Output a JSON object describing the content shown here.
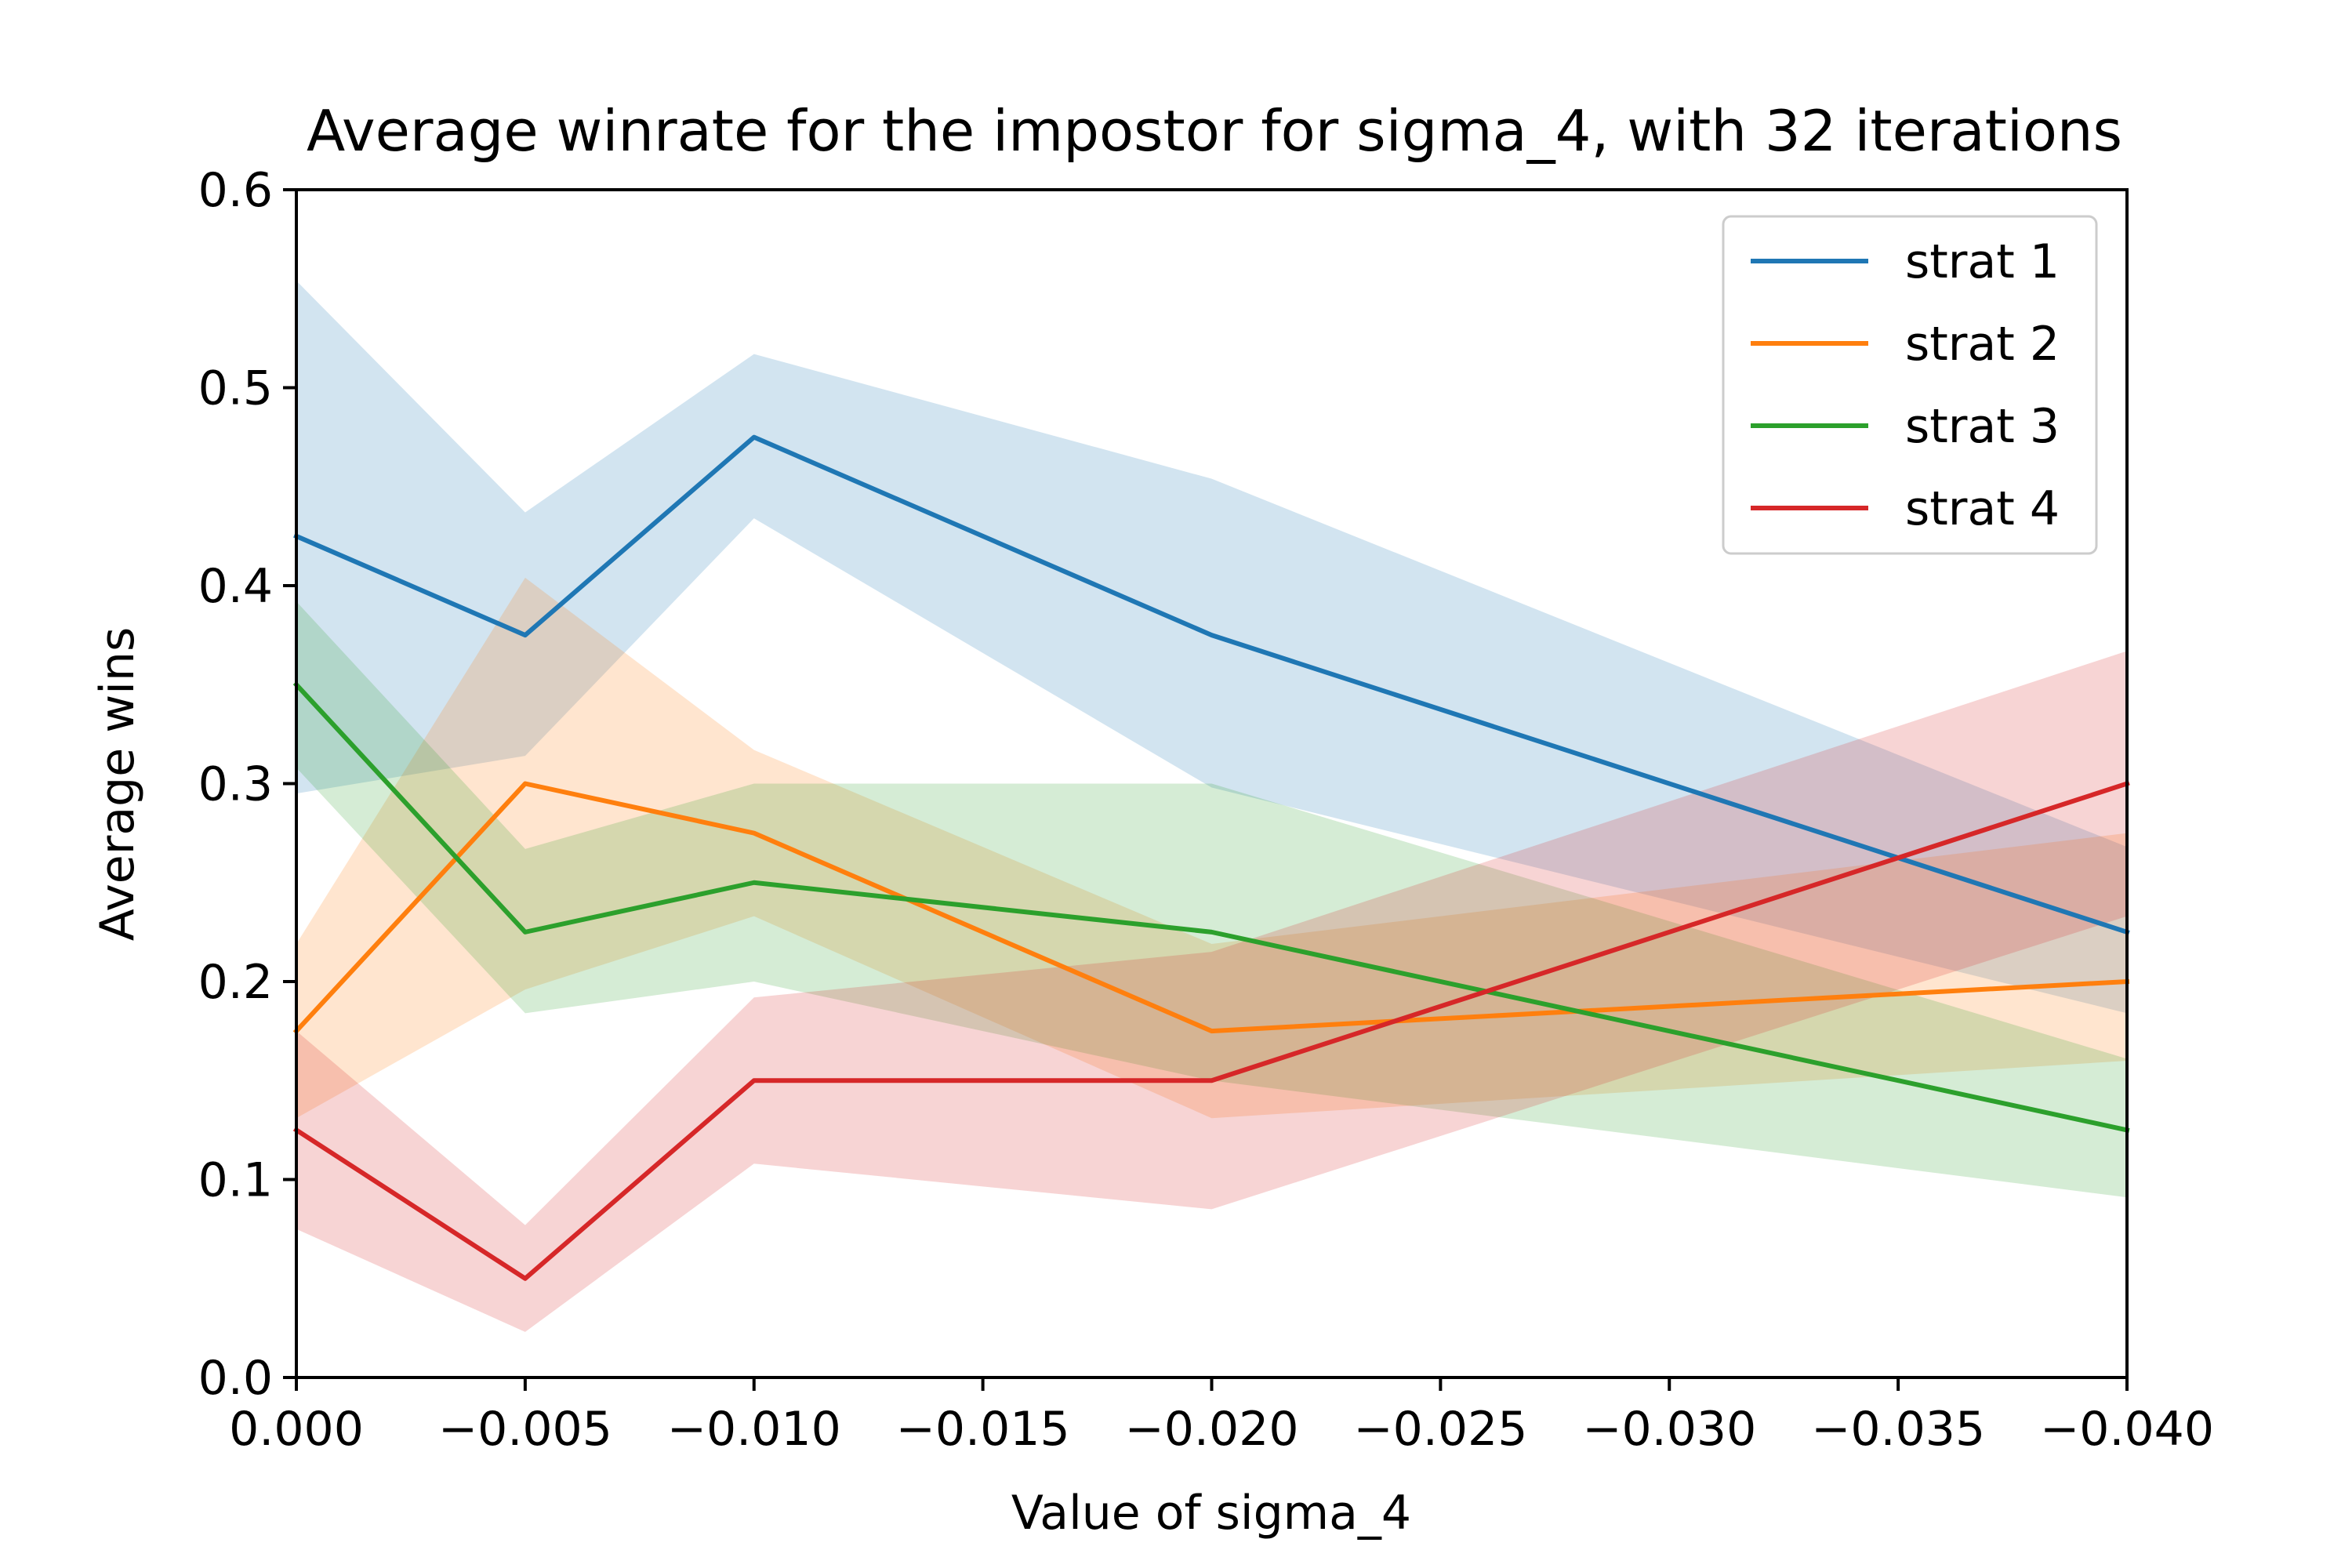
{
  "chart_data": {
    "type": "line",
    "title": "Average winrate for the impostor for sigma_4, with 32 iterations",
    "xlabel": "Value of sigma_4",
    "ylabel": "Average wins",
    "x": [
      0.0,
      -0.005,
      -0.01,
      -0.02,
      -0.04
    ],
    "xlim": [
      0.0,
      -0.04
    ],
    "ylim": [
      0.0,
      0.6
    ],
    "xticks": [
      0.0,
      -0.005,
      -0.01,
      -0.015,
      -0.02,
      -0.025,
      -0.03,
      -0.035,
      -0.04
    ],
    "xtick_labels": [
      "0.000",
      "−0.005",
      "−0.010",
      "−0.015",
      "−0.020",
      "−0.025",
      "−0.030",
      "−0.035",
      "−0.040"
    ],
    "yticks": [
      0.0,
      0.1,
      0.2,
      0.3,
      0.4,
      0.5,
      0.6
    ],
    "ytick_labels": [
      "0.0",
      "0.1",
      "0.2",
      "0.3",
      "0.4",
      "0.5",
      "0.6"
    ],
    "grid": false,
    "legend_position": "top-right",
    "series": [
      {
        "name": "strat 1",
        "color": "#1f77b4",
        "values": [
          0.425,
          0.375,
          0.475,
          0.375,
          0.225
        ],
        "lower": [
          0.295,
          0.314,
          0.434,
          0.298,
          0.184
        ],
        "upper": [
          0.554,
          0.437,
          0.517,
          0.454,
          0.268
        ]
      },
      {
        "name": "strat 2",
        "color": "#ff7f0e",
        "values": [
          0.175,
          0.3,
          0.275,
          0.175,
          0.2
        ],
        "lower": [
          0.131,
          0.196,
          0.233,
          0.131,
          0.16
        ],
        "upper": [
          0.219,
          0.404,
          0.317,
          0.219,
          0.275
        ]
      },
      {
        "name": "strat 3",
        "color": "#2ca02c",
        "values": [
          0.35,
          0.225,
          0.25,
          0.225,
          0.125
        ],
        "lower": [
          0.308,
          0.184,
          0.2,
          0.15,
          0.091
        ],
        "upper": [
          0.392,
          0.267,
          0.3,
          0.3,
          0.161
        ]
      },
      {
        "name": "strat 4",
        "color": "#d62728",
        "values": [
          0.125,
          0.05,
          0.15,
          0.15,
          0.3
        ],
        "lower": [
          0.075,
          0.023,
          0.108,
          0.085,
          0.233
        ],
        "upper": [
          0.175,
          0.077,
          0.192,
          0.215,
          0.367
        ]
      }
    ]
  }
}
